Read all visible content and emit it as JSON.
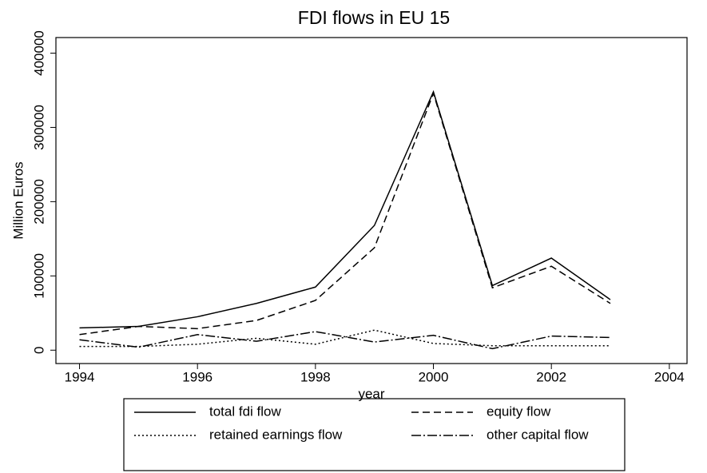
{
  "chart_data": {
    "type": "line",
    "title": "FDI flows in EU 15",
    "x_label": "year",
    "y_label": "Million Euros",
    "x": [
      1994,
      1995,
      1996,
      1997,
      1998,
      1999,
      2000,
      2001,
      2002,
      2003
    ],
    "series": [
      {
        "name": "total fdi flow",
        "color": "#000000",
        "dash": "none",
        "values": [
          30000,
          32000,
          45000,
          63000,
          85000,
          168000,
          348000,
          87000,
          124000,
          68000
        ]
      },
      {
        "name": "equity flow",
        "color": "#000000",
        "dash": "9,5",
        "values": [
          21000,
          32000,
          29000,
          40000,
          67000,
          138000,
          346000,
          84000,
          113000,
          63000
        ]
      },
      {
        "name": "retained earnings flow",
        "color": "#000000",
        "dash": "2,3",
        "values": [
          5000,
          5000,
          8000,
          16000,
          8000,
          27000,
          9000,
          6000,
          6000,
          6000
        ]
      },
      {
        "name": "other capital flow",
        "color": "#000000",
        "dash": "12,3,2,3",
        "values": [
          14000,
          4000,
          21000,
          12000,
          25000,
          11000,
          20000,
          2000,
          19000,
          17000
        ]
      }
    ],
    "xlim": [
      1993.6,
      2004.3
    ],
    "xticks": [
      1994,
      1996,
      1998,
      2000,
      2002,
      2004
    ],
    "ylim": [
      -18000,
      421000
    ],
    "yticks": [
      0,
      100000,
      200000,
      300000,
      400000
    ],
    "grid": false,
    "legend": "bottom"
  }
}
